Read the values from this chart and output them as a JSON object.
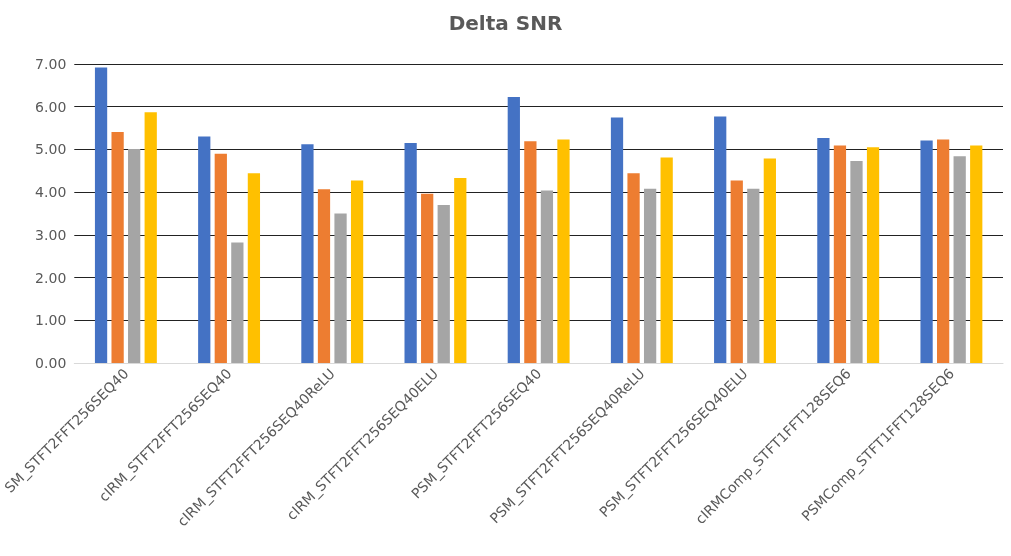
{
  "chart_data": {
    "type": "bar",
    "title": "Delta SNR",
    "categories": [
      "SM_STFT2FFT256SEQ40",
      "cIRM_STFT2FFT256SEQ40",
      "cIRM_STFT2FFT256SEQ40ReLU",
      "cIRM_STFT2FFT256SEQ40ELU",
      "PSM_STFT2FFT256SEQ40",
      "PSM_STFT2FFT256SEQ40ReLU",
      "PSM_STFT2FFT256SEQ40ELU",
      "cIRMComp_STFT1FFT128SEQ6",
      "PSMComp_STFT1FFT128SEQ6"
    ],
    "series": [
      {
        "color": "#4472c4",
        "values": [
          6.92,
          5.3,
          5.12,
          5.15,
          6.23,
          5.75,
          5.77,
          5.27,
          5.21
        ]
      },
      {
        "color": "#ed7d31",
        "values": [
          5.41,
          4.9,
          4.07,
          3.96,
          5.19,
          4.44,
          4.27,
          5.09,
          5.23
        ]
      },
      {
        "color": "#a5a5a5",
        "values": [
          5.01,
          2.82,
          3.5,
          3.7,
          4.04,
          4.08,
          4.08,
          4.73,
          4.84
        ]
      },
      {
        "color": "#ffc000",
        "values": [
          5.87,
          4.44,
          4.27,
          4.33,
          5.23,
          4.81,
          4.79,
          5.05,
          5.09
        ]
      }
    ],
    "ylim": [
      0,
      7
    ],
    "yticks": [
      {
        "value": 0,
        "label": "0.00"
      },
      {
        "value": 1,
        "label": "1.00"
      },
      {
        "value": 2,
        "label": "2.00"
      },
      {
        "value": 3,
        "label": "3.00"
      },
      {
        "value": 4,
        "label": "4.00"
      },
      {
        "value": 5,
        "label": "5.00"
      },
      {
        "value": 6,
        "label": "6.00"
      },
      {
        "value": 7,
        "label": "7.00"
      }
    ],
    "grid": "y"
  }
}
